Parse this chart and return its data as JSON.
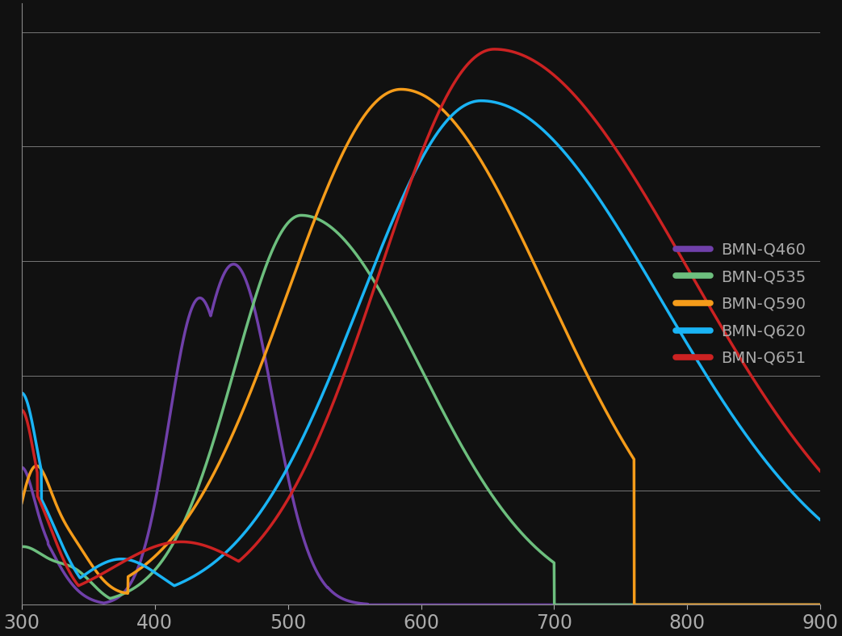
{
  "background_color": "#111111",
  "plot_bg_color": "#111111",
  "xlim": [
    300,
    900
  ],
  "ylim": [
    0,
    1.05
  ],
  "xticks": [
    300,
    400,
    500,
    600,
    700,
    800,
    900
  ],
  "grid_color": "#777777",
  "axis_color": "#888888",
  "tick_color": "#aaaaaa",
  "legend_text_color": "#aaaaaa",
  "series": [
    {
      "name": "BMN-Q460",
      "color": "#7040aa"
    },
    {
      "name": "BMN-Q535",
      "color": "#6dbf7e"
    },
    {
      "name": "BMN-Q590",
      "color": "#f59c1a"
    },
    {
      "name": "BMN-Q620",
      "color": "#1ab4f5"
    },
    {
      "name": "BMN-Q651",
      "color": "#cc2222"
    }
  ],
  "legend_fontsize": 14,
  "tick_fontsize": 17,
  "linewidth": 2.5
}
